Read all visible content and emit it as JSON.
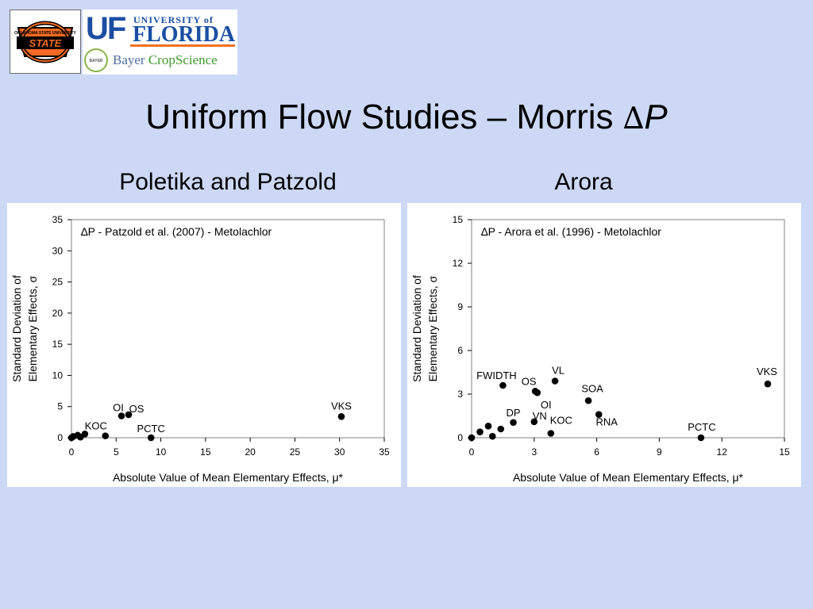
{
  "header": {
    "logos": {
      "osu": "OKLAHOMA STATE UNIVERSITY",
      "uf_mark": "UF",
      "uf_university": "UNIVERSITY of",
      "uf_florida": "FLORIDA",
      "bayer_badge": "BAYER",
      "bayer_name": "Bayer",
      "bayer_crop": "CropScience"
    },
    "title_text": "Uniform Flow Studies – Morris ",
    "title_delta": "∆",
    "title_p": "P"
  },
  "panels": {
    "left_heading": "Poletika and Patzold",
    "right_heading": "Arora"
  },
  "colors": {
    "background": "#ccd8f6",
    "marker": "#000000",
    "uf_blue": "#1b4ea3",
    "uf_orange": "#f27022",
    "bayer_green": "#88b54a",
    "osu_orange": "#f26a21"
  },
  "chart_data": [
    {
      "type": "scatter",
      "title": "∆P - Patzold et al. (2007) - Metolachlor",
      "xlabel": "Absolute Value of Mean Elementary Effects, μ*",
      "ylabel_line1": "Standard Deviation of",
      "ylabel_line2": "Elementary Effects, σ",
      "xlim": [
        0,
        35
      ],
      "ylim": [
        0,
        35
      ],
      "xticks": [
        0,
        5,
        10,
        15,
        20,
        25,
        30,
        35
      ],
      "yticks": [
        0,
        5,
        10,
        15,
        20,
        25,
        30,
        35
      ],
      "grid": false,
      "points": [
        {
          "x": 0.0,
          "y": 0.0,
          "label": ""
        },
        {
          "x": 0.2,
          "y": 0.2,
          "label": ""
        },
        {
          "x": 0.7,
          "y": 0.4,
          "label": ""
        },
        {
          "x": 1.0,
          "y": 0.1,
          "label": ""
        },
        {
          "x": 1.5,
          "y": 0.6,
          "label": ""
        },
        {
          "x": 3.8,
          "y": 0.3,
          "label": "KOC"
        },
        {
          "x": 5.6,
          "y": 3.5,
          "label": "OI"
        },
        {
          "x": 6.4,
          "y": 3.7,
          "label": "OS"
        },
        {
          "x": 8.9,
          "y": 0.0,
          "label": "PCTC"
        },
        {
          "x": 30.2,
          "y": 3.4,
          "label": "VKS"
        }
      ]
    },
    {
      "type": "scatter",
      "title": "∆P - Arora et al. (1996) - Metolachlor",
      "xlabel": "Absolute Value of Mean Elementary Effects, μ*",
      "ylabel_line1": "Standard Deviation of",
      "ylabel_line2": "Elementary Effects, σ",
      "xlim": [
        0,
        15
      ],
      "ylim": [
        0,
        15
      ],
      "xticks": [
        0,
        3,
        6,
        9,
        12,
        15
      ],
      "yticks": [
        0,
        3,
        6,
        9,
        12,
        15
      ],
      "grid": false,
      "points": [
        {
          "x": 0.0,
          "y": 0.0,
          "label": ""
        },
        {
          "x": 0.4,
          "y": 0.4,
          "label": ""
        },
        {
          "x": 0.8,
          "y": 0.8,
          "label": ""
        },
        {
          "x": 1.0,
          "y": 0.1,
          "label": ""
        },
        {
          "x": 1.4,
          "y": 0.6,
          "label": ""
        },
        {
          "x": 1.5,
          "y": 3.6,
          "label": "FWIDTH"
        },
        {
          "x": 2.0,
          "y": 1.05,
          "label": "DP"
        },
        {
          "x": 3.0,
          "y": 1.1,
          "label": "VN"
        },
        {
          "x": 3.05,
          "y": 3.2,
          "label": "OS"
        },
        {
          "x": 3.15,
          "y": 3.1,
          "label": "OI"
        },
        {
          "x": 3.8,
          "y": 0.3,
          "label": "KOC"
        },
        {
          "x": 4.0,
          "y": 3.9,
          "label": "VL"
        },
        {
          "x": 5.6,
          "y": 2.55,
          "label": "SOA"
        },
        {
          "x": 6.1,
          "y": 1.6,
          "label": "RNA"
        },
        {
          "x": 11.0,
          "y": 0.0,
          "label": "PCTC"
        },
        {
          "x": 14.2,
          "y": 3.7,
          "label": "VKS"
        }
      ]
    }
  ]
}
